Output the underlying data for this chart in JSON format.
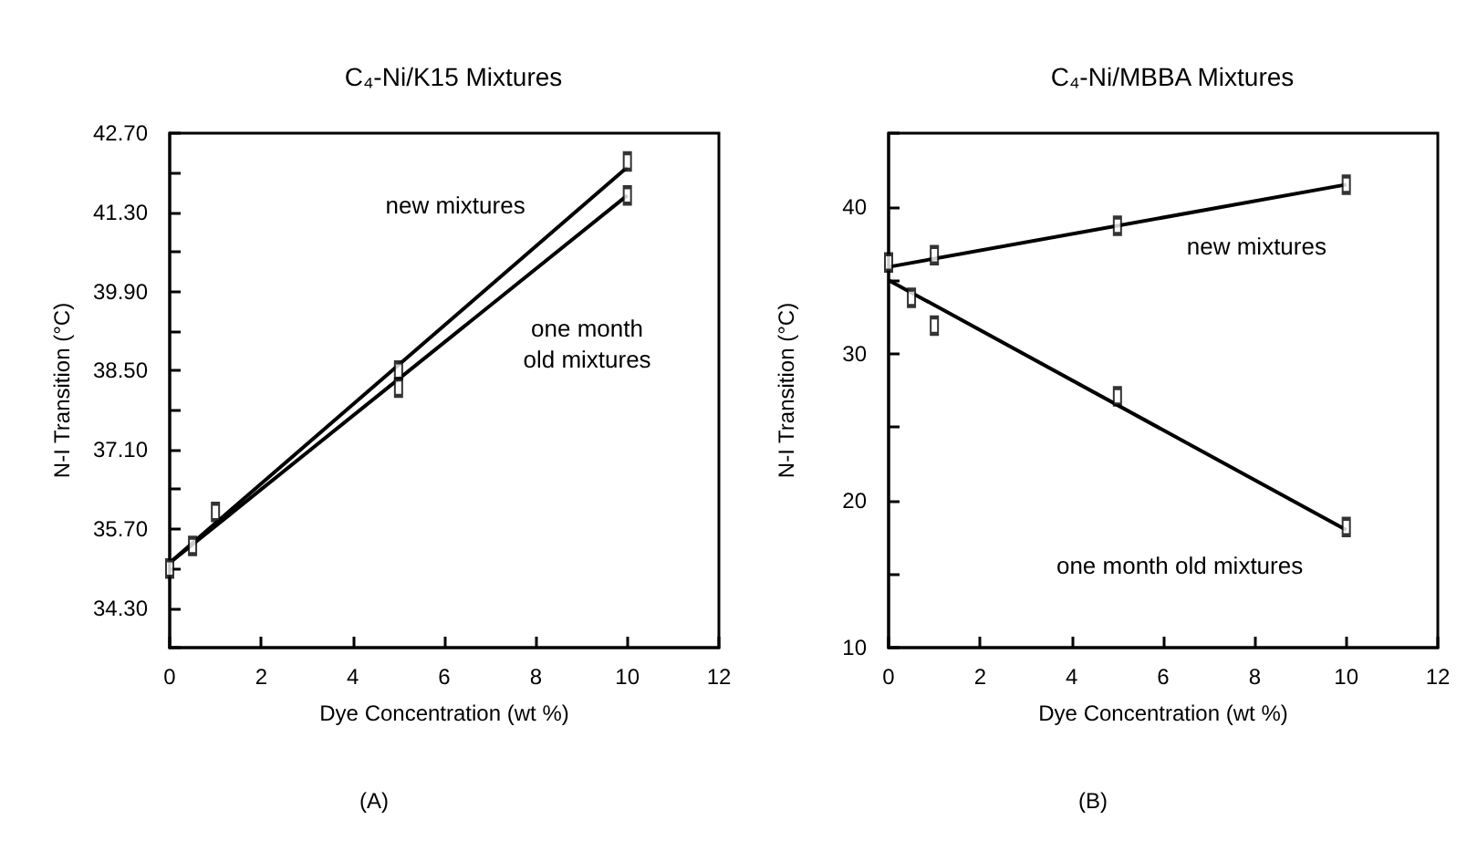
{
  "chart_data": [
    {
      "type": "line",
      "title": "C₄-Ni/K15 Mixtures",
      "xlabel": "Dye Concentration (wt %)",
      "ylabel": "N-I Transition (°C)",
      "xlim": [
        0,
        12
      ],
      "xticks": [
        0,
        2,
        4,
        6,
        8,
        10,
        12
      ],
      "ylim": [
        33.6,
        42.7
      ],
      "yticks": [
        {
          "value": 33.6,
          "label": null
        },
        {
          "value": 34.3,
          "label": "34.30"
        },
        {
          "value": 35,
          "label": null
        },
        {
          "value": 35.7,
          "label": "35.70"
        },
        {
          "value": 36.4,
          "label": null
        },
        {
          "value": 37.1,
          "label": "37.10"
        },
        {
          "value": 37.8,
          "label": null
        },
        {
          "value": 38.5,
          "label": "38.50"
        },
        {
          "value": 39.2,
          "label": null
        },
        {
          "value": 39.9,
          "label": "39.90"
        },
        {
          "value": 40.6,
          "label": null
        },
        {
          "value": 41.3,
          "label": "41.30"
        },
        {
          "value": 42,
          "label": null
        },
        {
          "value": 42.7,
          "label": "42.70"
        }
      ],
      "grid": false,
      "series": [
        {
          "x": [
            0,
            10
          ],
          "values": [
            35.1,
            42.1
          ],
          "color": "#000000",
          "marker": "none"
        },
        {
          "x": [
            0,
            10
          ],
          "values": [
            35.1,
            41.6
          ],
          "color": "#000000",
          "marker": "none"
        },
        {
          "type": "scatter",
          "x": [
            0,
            0.5,
            1,
            5,
            10
          ],
          "values": [
            35.0,
            35.4,
            36.0,
            38.5,
            42.2
          ],
          "color": "#000000",
          "marker": "square"
        },
        {
          "type": "scatter",
          "x": [
            5,
            10
          ],
          "values": [
            38.2,
            41.6
          ],
          "color": "#000000",
          "marker": "square"
        }
      ],
      "annotations": [
        "new mixtures",
        "one month\nold mixtures",
        "(A)"
      ]
    },
    {
      "type": "line",
      "title": "C₄-Ni/MBBA Mixtures",
      "xlabel": "Dye Concentration (wt %)",
      "ylabel": "N-I Transition (°C)",
      "xlim": [
        0,
        12
      ],
      "xticks": [
        0,
        2,
        4,
        6,
        8,
        10,
        12
      ],
      "ylim": [
        10,
        45
      ],
      "yticks": [
        10,
        {
          "value": 15,
          "label": null
        },
        20,
        {
          "value": 25,
          "label": null
        },
        30,
        {
          "value": 35,
          "label": null
        },
        40,
        {
          "value": 45,
          "label": null
        }
      ],
      "grid": false,
      "series": [
        {
          "x": [
            0,
            10
          ],
          "values": [
            35.9,
            41.5
          ],
          "color": "#000000",
          "marker": "none"
        },
        {
          "x": [
            0,
            10
          ],
          "values": [
            35.0,
            18.0
          ],
          "color": "#000000",
          "marker": "none"
        },
        {
          "type": "scatter",
          "x": [
            0,
            1,
            5,
            10
          ],
          "values": [
            36.2,
            36.7,
            38.7,
            41.5
          ],
          "color": "#000000",
          "marker": "square"
        },
        {
          "type": "scatter",
          "x": [
            0.5,
            1,
            5,
            10
          ],
          "values": [
            33.8,
            31.9,
            27.1,
            18.2
          ],
          "color": "#000000",
          "marker": "square"
        }
      ],
      "annotations": [
        "new mixtures",
        "one month old mixtures",
        "(B)"
      ]
    }
  ]
}
